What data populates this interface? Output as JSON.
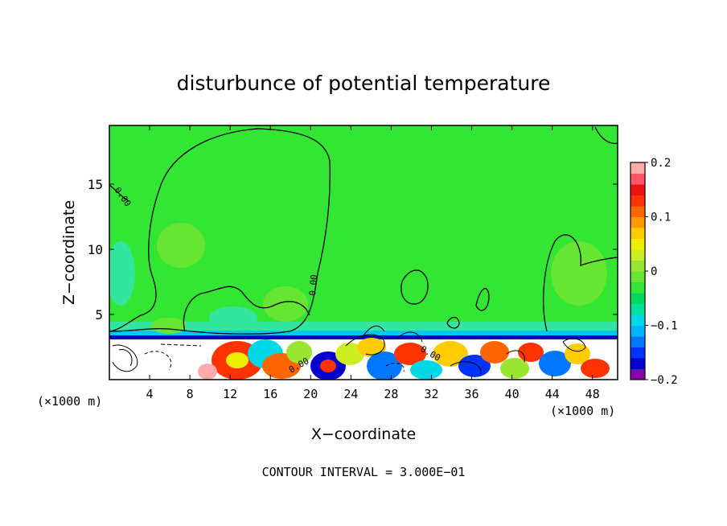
{
  "chart_data": {
    "type": "heatmap",
    "title": "disturbunce of potential temperature",
    "xlabel": "X−coordinate",
    "ylabel": "Z−coordinate",
    "x_unit_left": "(×1000 m)",
    "x_unit_right": "(×1000 m)",
    "xlim": [
      0,
      50.5
    ],
    "ylim": [
      0,
      19.5
    ],
    "x_ticks": [
      4,
      8,
      12,
      16,
      20,
      24,
      28,
      32,
      36,
      40,
      44,
      48
    ],
    "y_ticks": [
      5,
      10,
      15
    ],
    "colorbar": {
      "min": -0.2,
      "max": 0.2,
      "tick_labels": [
        "0.2",
        "0.1",
        "0",
        "−0.1",
        "−0.2"
      ],
      "tick_values": [
        0.2,
        0.1,
        0,
        -0.1,
        -0.2
      ],
      "colors": [
        "#8800aa",
        "#0000cc",
        "#0033ff",
        "#0077ff",
        "#00b4ff",
        "#00d8e8",
        "#00e0a0",
        "#00d860",
        "#33e633",
        "#66e633",
        "#99e633",
        "#ccee22",
        "#eeee00",
        "#ffcc00",
        "#ff9900",
        "#ff6600",
        "#ff3300",
        "#ee1111",
        "#ff5566",
        "#ffaaaa"
      ]
    },
    "contour_labels": [
      "0.00",
      "0.00",
      "0.00",
      "0.00"
    ],
    "footer": "CONTOUR INTERVAL = 3.000E−01"
  }
}
